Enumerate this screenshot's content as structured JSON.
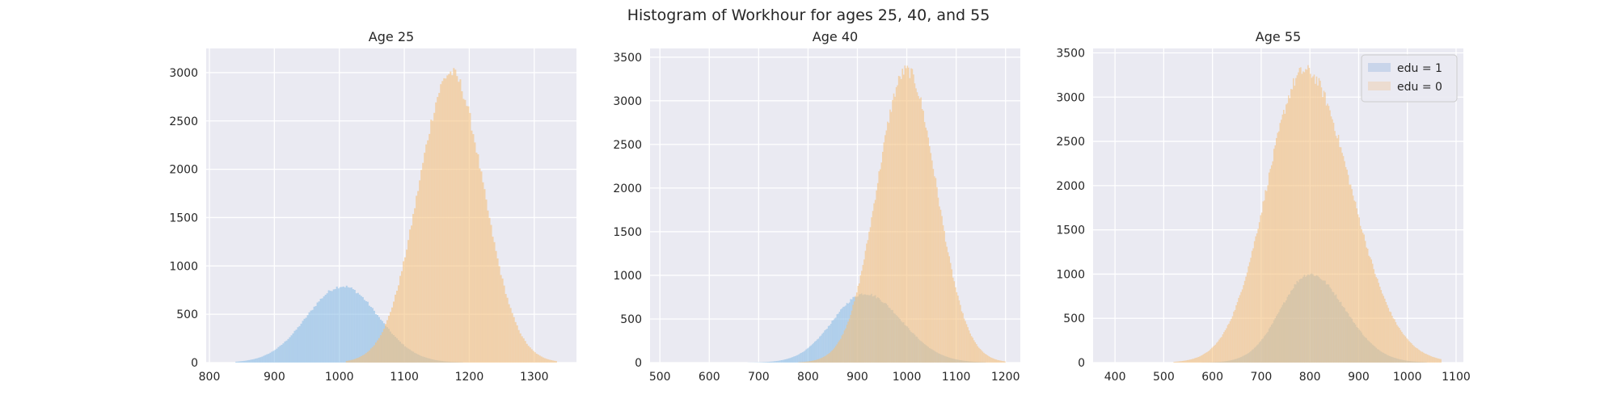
{
  "figure": {
    "suptitle": "Histogram of Workhour for ages 25, 40, and 55"
  },
  "style": {
    "axes_bg": "#eaeaf2",
    "grid_color": "#ffffff",
    "series_colors": {
      "edu = 1": "#89bde6",
      "edu = 0": "#f5c07c"
    },
    "legend_patch_colors": {
      "edu = 1": "#c9d5ea",
      "edu = 0": "#ecdcd0"
    },
    "overlap_color": "#bdb28e",
    "bar_alpha": 0.6
  },
  "chart_data": [
    {
      "type": "histogram",
      "title": "Age 25",
      "xlabel": "",
      "ylabel": "",
      "xlim": [
        795,
        1365
      ],
      "ylim": [
        0,
        3250
      ],
      "xticks": [
        800,
        900,
        1000,
        1100,
        1200,
        1300
      ],
      "yticks": [
        0,
        500,
        1000,
        1500,
        2000,
        2500,
        3000
      ],
      "grid": true,
      "series": [
        {
          "name": "edu = 1",
          "mean": 1005,
          "sd": 55,
          "peak": 790,
          "range": [
            840,
            1190
          ]
        },
        {
          "name": "edu = 0",
          "mean": 1172,
          "sd": 50,
          "peak": 3000,
          "range": [
            1010,
            1335
          ]
        }
      ]
    },
    {
      "type": "histogram",
      "title": "Age 40",
      "xlabel": "",
      "ylabel": "",
      "xlim": [
        480,
        1230
      ],
      "ylim": [
        0,
        3600
      ],
      "xticks": [
        500,
        600,
        700,
        800,
        900,
        1000,
        1100,
        1200
      ],
      "yticks": [
        0,
        500,
        1000,
        1500,
        2000,
        2500,
        3000,
        3500
      ],
      "grid": true,
      "series": [
        {
          "name": "edu = 1",
          "mean": 915,
          "sd": 65,
          "peak": 790,
          "range": [
            500,
            1160
          ],
          "skew": 1.15
        },
        {
          "name": "edu = 0",
          "mean": 1000,
          "sd": 60,
          "peak": 3350,
          "range": [
            780,
            1200
          ]
        }
      ]
    },
    {
      "type": "histogram",
      "title": "Age 55",
      "xlabel": "",
      "ylabel": "",
      "xlim": [
        355,
        1115
      ],
      "ylim": [
        0,
        3550
      ],
      "xticks": [
        400,
        500,
        600,
        700,
        800,
        900,
        1000,
        1100
      ],
      "yticks": [
        0,
        500,
        1000,
        1500,
        2000,
        2500,
        3000,
        3500
      ],
      "grid": true,
      "legend": {
        "location": "upper right",
        "entries": [
          "edu = 1",
          "edu = 0"
        ]
      },
      "series": [
        {
          "name": "edu = 1",
          "mean": 800,
          "sd": 60,
          "peak": 1000,
          "range": [
            570,
            1040
          ],
          "skew": 1.2
        },
        {
          "name": "edu = 0",
          "mean": 790,
          "sd": 78,
          "peak": 3300,
          "range": [
            520,
            1070
          ],
          "skew": 1.2
        }
      ]
    }
  ]
}
